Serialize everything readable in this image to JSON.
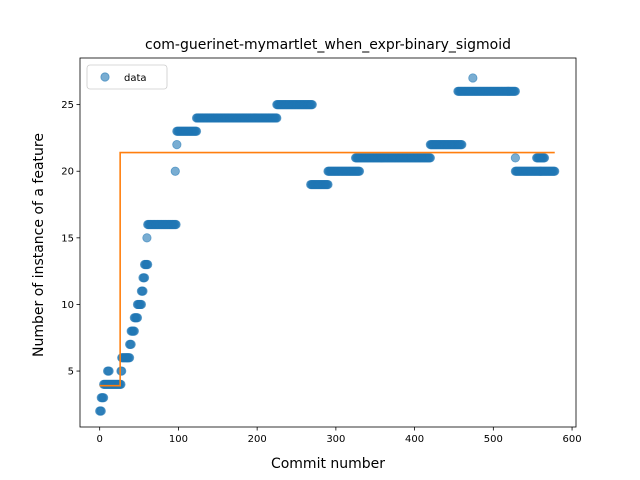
{
  "chart_data": {
    "type": "scatter",
    "title": "com-guerinet-mymartlet_when_expr-binary_sigmoid",
    "xlabel": "Commit number",
    "ylabel": "Number of instance of a feature",
    "xlim": [
      -25,
      605
    ],
    "ylim": [
      0.8,
      28.5
    ],
    "x_ticks": [
      0,
      100,
      200,
      300,
      400,
      500,
      600
    ],
    "y_ticks": [
      5,
      10,
      15,
      20,
      25
    ],
    "legend": {
      "position": "top-left",
      "entries": [
        "data"
      ]
    },
    "grid": false,
    "series": [
      {
        "name": "data",
        "marker": "circle",
        "color": "#1f77b4",
        "segments": [
          {
            "x_start": 0,
            "x_end": 2,
            "y": 2
          },
          {
            "x_start": 2,
            "x_end": 5,
            "y": 3
          },
          {
            "x_start": 5,
            "x_end": 27,
            "y": 4
          },
          {
            "x_start": 10,
            "x_end": 12,
            "y": 5
          },
          {
            "x_start": 27,
            "x_end": 28,
            "y": 5
          },
          {
            "x_start": 28,
            "x_end": 38,
            "y": 6
          },
          {
            "x_start": 38,
            "x_end": 40,
            "y": 7
          },
          {
            "x_start": 40,
            "x_end": 44,
            "y": 8
          },
          {
            "x_start": 44,
            "x_end": 48,
            "y": 9
          },
          {
            "x_start": 48,
            "x_end": 53,
            "y": 10
          },
          {
            "x_start": 53,
            "x_end": 55,
            "y": 11
          },
          {
            "x_start": 55,
            "x_end": 57,
            "y": 12
          },
          {
            "x_start": 57,
            "x_end": 61,
            "y": 13
          },
          {
            "x_start": 60,
            "x_end": 60,
            "y": 15
          },
          {
            "x_start": 61,
            "x_end": 97,
            "y": 16
          },
          {
            "x_start": 96,
            "x_end": 96,
            "y": 20
          },
          {
            "x_start": 98,
            "x_end": 98,
            "y": 22
          },
          {
            "x_start": 98,
            "x_end": 123,
            "y": 23
          },
          {
            "x_start": 123,
            "x_end": 225,
            "y": 24
          },
          {
            "x_start": 225,
            "x_end": 270,
            "y": 25
          },
          {
            "x_start": 268,
            "x_end": 290,
            "y": 19
          },
          {
            "x_start": 290,
            "x_end": 330,
            "y": 20
          },
          {
            "x_start": 325,
            "x_end": 420,
            "y": 21
          },
          {
            "x_start": 420,
            "x_end": 460,
            "y": 22
          },
          {
            "x_start": 455,
            "x_end": 528,
            "y": 26
          },
          {
            "x_start": 474,
            "x_end": 474,
            "y": 27
          },
          {
            "x_start": 528,
            "x_end": 528,
            "y": 21
          },
          {
            "x_start": 528,
            "x_end": 560,
            "y": 20
          },
          {
            "x_start": 555,
            "x_end": 565,
            "y": 21
          },
          {
            "x_start": 560,
            "x_end": 578,
            "y": 20
          }
        ]
      },
      {
        "name": "",
        "marker": "line",
        "color": "#ff7f0e",
        "x": [
          0,
          26,
          26,
          578
        ],
        "y": [
          3.9,
          3.9,
          21.4,
          21.4
        ]
      }
    ]
  }
}
